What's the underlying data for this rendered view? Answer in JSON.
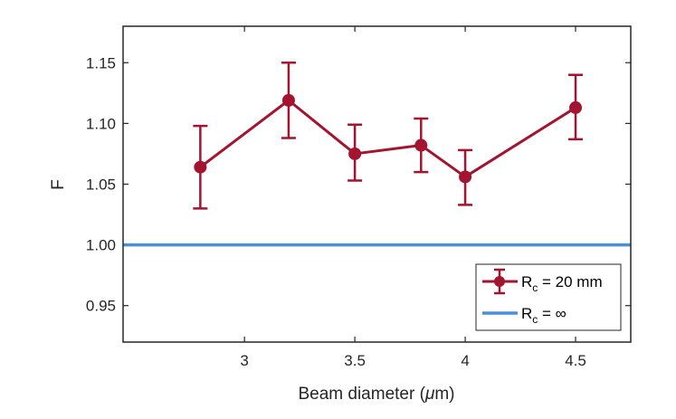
{
  "chart_data": {
    "type": "line",
    "xlabel_prefix": "Beam diameter (",
    "xlabel_unit_symbol": "μ",
    "xlabel_suffix": "m)",
    "ylabel": "F",
    "xlim": [
      2.45,
      4.75
    ],
    "ylim": [
      0.92,
      1.18
    ],
    "xticks": [
      3,
      3.5,
      4,
      4.5
    ],
    "xtick_labels": [
      "3",
      "3.5",
      "4",
      "4.5"
    ],
    "yticks": [
      0.95,
      1.0,
      1.05,
      1.1,
      1.15
    ],
    "ytick_labels": [
      "0.95",
      "1.00",
      "1.05",
      "1.10",
      "1.15"
    ],
    "grid": false,
    "legend_position": "bottom-right",
    "series": [
      {
        "name_main": "R",
        "name_sub": "c",
        "name_rest": " = 20 mm",
        "color": "#A2142F",
        "x": [
          2.8,
          3.2,
          3.5,
          3.8,
          4.0,
          4.5
        ],
        "y": [
          1.064,
          1.119,
          1.075,
          1.082,
          1.056,
          1.113
        ],
        "err_low": [
          0.034,
          0.031,
          0.022,
          0.022,
          0.023,
          0.026
        ],
        "err_high": [
          0.034,
          0.031,
          0.024,
          0.022,
          0.022,
          0.027
        ]
      },
      {
        "name_main": "R",
        "name_sub": "c",
        "name_rest": " = ∞",
        "color": "#4A90D9",
        "y": 1.0
      }
    ]
  }
}
